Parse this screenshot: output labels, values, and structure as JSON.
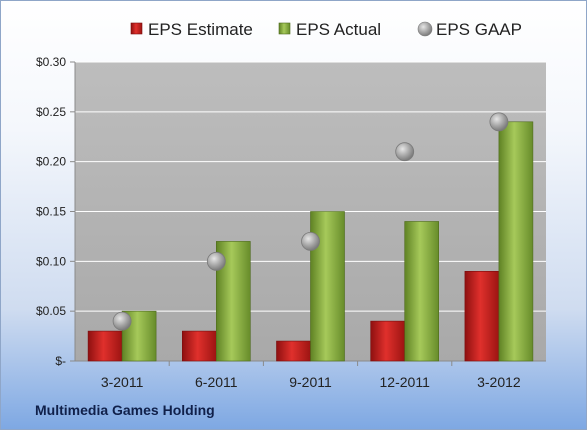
{
  "company_name": "Multimedia Games Holding",
  "colors": {
    "estimate": "#c9201f",
    "actual": "#8db13e",
    "gaap": "#a9a9a9",
    "plot_background": "#b8b8b8"
  },
  "chart_data": {
    "type": "bar",
    "categories": [
      "3-2011",
      "6-2011",
      "9-2011",
      "12-2011",
      "3-2012"
    ],
    "series": [
      {
        "name": "EPS Estimate",
        "kind": "bar",
        "values": [
          0.03,
          0.03,
          0.02,
          0.04,
          0.09
        ]
      },
      {
        "name": "EPS Actual",
        "kind": "bar",
        "values": [
          0.05,
          0.12,
          0.15,
          0.14,
          0.24
        ]
      },
      {
        "name": "EPS GAAP",
        "kind": "marker",
        "values": [
          0.04,
          0.1,
          0.12,
          0.21,
          0.24
        ]
      }
    ],
    "yticks": [
      0,
      0.05,
      0.1,
      0.15,
      0.2,
      0.25,
      0.3
    ],
    "ytick_labels": [
      "$-",
      "$0.05",
      "$0.10",
      "$0.15",
      "$0.20",
      "$0.25",
      "$0.30"
    ],
    "ylim": [
      0,
      0.3
    ],
    "grid": true,
    "legend_position": "top"
  }
}
